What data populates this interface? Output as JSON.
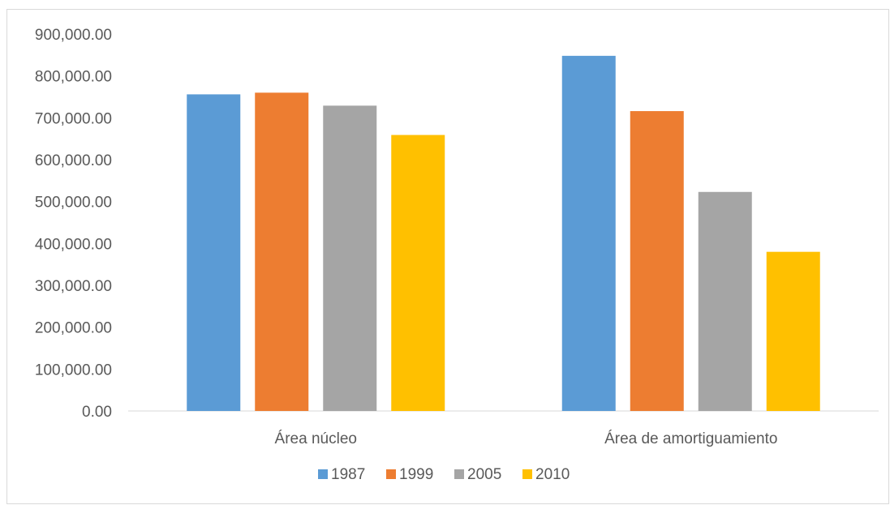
{
  "chart_data": {
    "type": "bar",
    "categories": [
      "Área núcleo",
      "Área de amortiguamiento"
    ],
    "series": [
      {
        "name": "1987",
        "color": "#5b9bd5",
        "values": [
          756000,
          848000
        ]
      },
      {
        "name": "1999",
        "color": "#ed7d31",
        "values": [
          760000,
          716000
        ]
      },
      {
        "name": "2005",
        "color": "#a5a5a5",
        "values": [
          729000,
          523000
        ]
      },
      {
        "name": "2010",
        "color": "#ffc000",
        "values": [
          659000,
          380000
        ]
      }
    ],
    "ylim": [
      0,
      900000
    ],
    "yticks": [
      {
        "value": 0,
        "label": "0.00"
      },
      {
        "value": 100000,
        "label": "100,000.00"
      },
      {
        "value": 200000,
        "label": "200,000.00"
      },
      {
        "value": 300000,
        "label": "300,000.00"
      },
      {
        "value": 400000,
        "label": "400,000.00"
      },
      {
        "value": 500000,
        "label": "500,000.00"
      },
      {
        "value": 600000,
        "label": "600,000.00"
      },
      {
        "value": 700000,
        "label": "700,000.00"
      },
      {
        "value": 800000,
        "label": "800,000.00"
      },
      {
        "value": 900000,
        "label": "900,000.00"
      }
    ],
    "grid": false,
    "legend_position": "bottom"
  }
}
